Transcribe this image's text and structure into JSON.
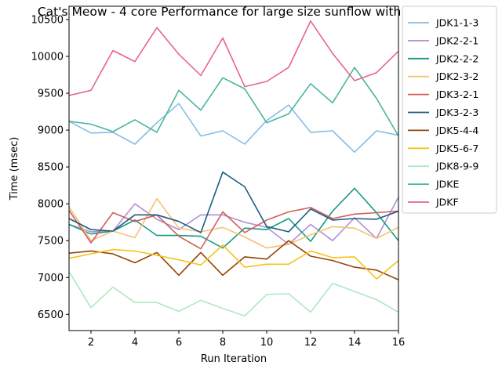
{
  "chart_data": {
    "type": "line",
    "title": "Cat's Meow - 4 core Performance for large size sunflow with OAP",
    "xlabel": "Run Iteration",
    "ylabel": "Time (msec)",
    "xlim": [
      1,
      16
    ],
    "ylim": [
      6280,
      10680
    ],
    "xticks": [
      2,
      4,
      6,
      8,
      10,
      12,
      14,
      16
    ],
    "yticks": [
      6500,
      7000,
      7500,
      8000,
      8500,
      9000,
      9500,
      10000,
      10500
    ],
    "grid": false,
    "legend_position": "outside-right",
    "x": [
      1,
      2,
      3,
      4,
      5,
      6,
      7,
      8,
      9,
      10,
      11,
      12,
      13,
      14,
      15,
      16
    ],
    "series": [
      {
        "name": "JDK1-1-3",
        "color": "#85bde3",
        "values": [
          9120,
          8960,
          8970,
          8810,
          9100,
          9360,
          8920,
          8990,
          8810,
          9130,
          9340,
          8970,
          8990,
          8700,
          8990,
          8930
        ]
      },
      {
        "name": "JDK2-2-1",
        "color": "#b38fd6",
        "values": [
          7720,
          7620,
          7630,
          8000,
          7790,
          7650,
          7850,
          7850,
          7750,
          7680,
          7450,
          7720,
          7500,
          7810,
          7530,
          8090
        ]
      },
      {
        "name": "JDK2-2-2",
        "color": "#1a9a84",
        "values": [
          7720,
          7590,
          7630,
          7780,
          7570,
          7570,
          7560,
          7400,
          7670,
          7650,
          7800,
          7490,
          7900,
          8210,
          7880,
          7500
        ]
      },
      {
        "name": "JDK2-3-2",
        "color": "#f5c272",
        "values": [
          7960,
          7500,
          7630,
          7540,
          8070,
          7670,
          7620,
          7680,
          7550,
          7400,
          7450,
          7580,
          7690,
          7670,
          7530,
          7680
        ]
      },
      {
        "name": "JDK3-2-1",
        "color": "#d15f58",
        "values": [
          7910,
          7470,
          7880,
          7760,
          7850,
          7560,
          7390,
          7890,
          7610,
          7780,
          7890,
          7950,
          7800,
          7860,
          7880,
          7900
        ]
      },
      {
        "name": "JDK3-2-3",
        "color": "#1d5d80",
        "values": [
          7800,
          7650,
          7630,
          7850,
          7850,
          7760,
          7610,
          8430,
          8230,
          7690,
          7620,
          7930,
          7780,
          7800,
          7790,
          7900
        ]
      },
      {
        "name": "JDK5-4-4",
        "color": "#974408",
        "values": [
          7330,
          7360,
          7320,
          7200,
          7340,
          7030,
          7340,
          7030,
          7280,
          7250,
          7500,
          7290,
          7230,
          7140,
          7100,
          6970
        ]
      },
      {
        "name": "JDK5-6-7",
        "color": "#f5c31a",
        "values": [
          7260,
          7320,
          7380,
          7360,
          7300,
          7240,
          7170,
          7440,
          7140,
          7180,
          7180,
          7360,
          7270,
          7280,
          6980,
          7230
        ]
      },
      {
        "name": "JDK8-9-9",
        "color": "#aee8c2",
        "values": [
          7080,
          6590,
          6870,
          6660,
          6660,
          6540,
          6690,
          6580,
          6480,
          6770,
          6780,
          6530,
          6920,
          6810,
          6700,
          6530
        ]
      },
      {
        "name": "JDKE",
        "color": "#4ab5a0",
        "values": [
          9120,
          9080,
          8980,
          9140,
          8970,
          9540,
          9270,
          9710,
          9560,
          9100,
          9220,
          9630,
          9370,
          9850,
          9430,
          8920
        ]
      },
      {
        "name": "JDKF",
        "color": "#e8648c",
        "values": [
          9470,
          9540,
          10080,
          9930,
          10390,
          10030,
          9740,
          10250,
          9590,
          9660,
          9850,
          10480,
          10040,
          9670,
          9780,
          10070
        ]
      }
    ]
  }
}
